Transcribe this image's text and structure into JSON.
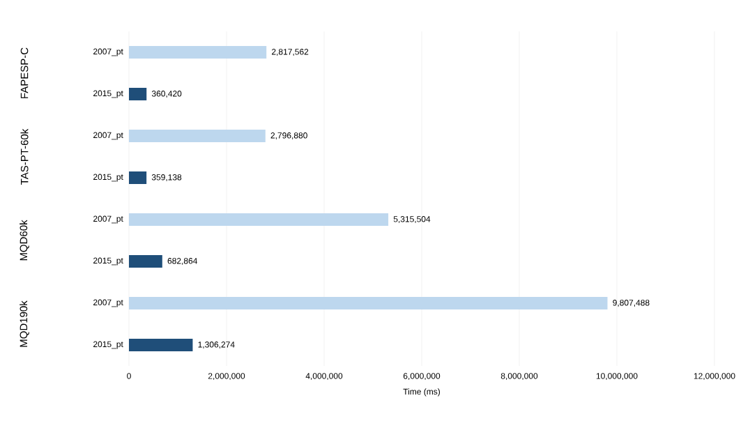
{
  "chart_data": {
    "type": "bar",
    "orientation": "horizontal",
    "xlabel": "Time (ms)",
    "categories": [
      "2007_pt",
      "2015_pt",
      "2007_pt",
      "2015_pt",
      "2007_pt",
      "2015_pt",
      "2007_pt",
      "2015_pt"
    ],
    "values": [
      2817562,
      360420,
      2796880,
      359138,
      5315504,
      682864,
      9807488,
      1306274
    ],
    "value_labels": [
      "2,817,562",
      "360,420",
      "2,796,880",
      "359,138",
      "5,315,504",
      "682,864",
      "9,807,488",
      "1,306,274"
    ],
    "colors": [
      "#bdd7ee",
      "#1f4e79",
      "#bdd7ee",
      "#1f4e79",
      "#bdd7ee",
      "#1f4e79",
      "#bdd7ee",
      "#1f4e79"
    ],
    "annotations": [
      "FAPESP-C",
      "TAS-PT-60k",
      "MQD60k",
      "MQD190k"
    ],
    "xlim": [
      0,
      12000000
    ],
    "xticks": [
      0,
      {
        "value": 2000000,
        "label": "2,000,000"
      },
      {
        "value": 4000000,
        "label": "4,000,000"
      },
      {
        "value": 6000000,
        "label": "6,000,000"
      },
      {
        "value": 8000000,
        "label": "8,000,000"
      },
      {
        "value": 10000000,
        "label": "10,000,000"
      },
      {
        "value": 12000000,
        "label": "12,000,000"
      }
    ],
    "grid": "x"
  }
}
